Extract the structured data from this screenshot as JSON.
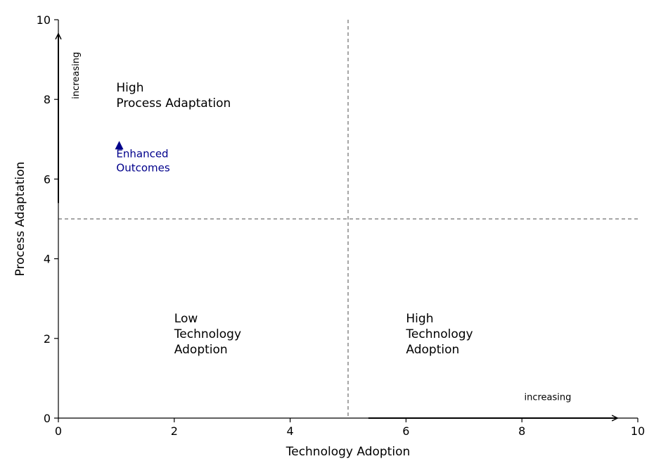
{
  "chart_data": {
    "type": "scatter",
    "xlabel": "Technology Adoption",
    "ylabel": "Process Adaptation",
    "xlim": [
      0,
      10
    ],
    "ylim": [
      0,
      10
    ],
    "xticks": [
      0,
      2,
      4,
      6,
      8,
      10
    ],
    "yticks": [
      0,
      2,
      4,
      6,
      8,
      10
    ],
    "xtick_labels": [
      "0",
      "2",
      "4",
      "6",
      "8",
      "10"
    ],
    "ytick_labels": [
      "0",
      "2",
      "4",
      "6",
      "8",
      "10"
    ],
    "grid": false,
    "reference_lines": {
      "x": 5,
      "y": 5,
      "style": "dashed",
      "color": "#888888"
    },
    "points": [
      {
        "x": 1.05,
        "y": 6.85,
        "marker": "triangle",
        "color": "#00008b"
      }
    ],
    "annotations": [
      {
        "lines": [
          "High",
          "Process Adaptation"
        ],
        "x": 1.0,
        "y": 8.2,
        "color": "#000000"
      },
      {
        "lines": [
          "Enhanced",
          "Outcomes"
        ],
        "x": 1.0,
        "y": 6.55,
        "color": "#00008b"
      },
      {
        "lines": [
          "Low",
          "Technology",
          "Adoption"
        ],
        "x": 2.0,
        "y": 2.4,
        "color": "#000000"
      },
      {
        "lines": [
          "High",
          "Technology",
          "Adoption"
        ],
        "x": 6.0,
        "y": 2.4,
        "color": "#000000"
      }
    ],
    "arrows": [
      {
        "axis": "x",
        "from": [
          5.35,
          0
        ],
        "to": [
          9.65,
          0
        ],
        "label": "increasing",
        "label_x": 8.04,
        "label_y": 0.52
      },
      {
        "axis": "y",
        "from": [
          0,
          5.4
        ],
        "to": [
          0,
          9.65
        ],
        "label": "increasing",
        "label_x": 0.35,
        "label_y": 8.6
      }
    ]
  }
}
